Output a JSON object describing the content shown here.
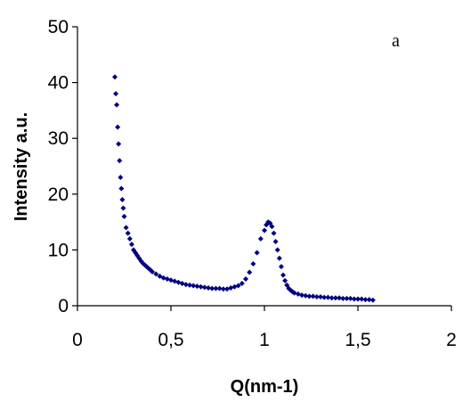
{
  "chart_data": {
    "type": "scatter",
    "xlabel": "Q(nm-1)",
    "ylabel": "Intensity a.u.",
    "annotation": "a",
    "xlim": [
      0,
      2
    ],
    "ylim": [
      0,
      50
    ],
    "x_ticks": [
      {
        "value": 0,
        "label": "0"
      },
      {
        "value": 0.5,
        "label": "0,5"
      },
      {
        "value": 1,
        "label": "1"
      },
      {
        "value": 1.5,
        "label": "1,5"
      },
      {
        "value": 2,
        "label": "2"
      }
    ],
    "y_ticks": [
      {
        "value": 0,
        "label": "0"
      },
      {
        "value": 10,
        "label": "10"
      },
      {
        "value": 20,
        "label": "20"
      },
      {
        "value": 30,
        "label": "30"
      },
      {
        "value": 40,
        "label": "40"
      },
      {
        "value": 50,
        "label": "50"
      }
    ],
    "grid": false,
    "marker_color": "#000080",
    "marker": "diamond",
    "series": [
      {
        "x": [
          0.2,
          0.205,
          0.21,
          0.215,
          0.22,
          0.225,
          0.23,
          0.235,
          0.24,
          0.245,
          0.25,
          0.26,
          0.27,
          0.28,
          0.29,
          0.3,
          0.31,
          0.32,
          0.33,
          0.34,
          0.35,
          0.36,
          0.37,
          0.38,
          0.39,
          0.4,
          0.42,
          0.44,
          0.46,
          0.48,
          0.5,
          0.52,
          0.54,
          0.56,
          0.58,
          0.6,
          0.62,
          0.64,
          0.66,
          0.68,
          0.7,
          0.72,
          0.74,
          0.76,
          0.78,
          0.8,
          0.82,
          0.84,
          0.86,
          0.88,
          0.9,
          0.92,
          0.94,
          0.96,
          0.98,
          1.0,
          1.01,
          1.02,
          1.03,
          1.04,
          1.05,
          1.06,
          1.07,
          1.08,
          1.09,
          1.1,
          1.11,
          1.12,
          1.13,
          1.14,
          1.15,
          1.16,
          1.18,
          1.2,
          1.22,
          1.24,
          1.26,
          1.28,
          1.3,
          1.32,
          1.34,
          1.36,
          1.38,
          1.4,
          1.42,
          1.44,
          1.46,
          1.48,
          1.5,
          1.52,
          1.54,
          1.56,
          1.58
        ],
        "y": [
          41,
          38,
          36,
          32,
          29,
          26,
          23,
          21,
          19,
          17.5,
          16,
          14,
          13,
          12,
          11,
          10,
          9.5,
          9,
          8.5,
          8,
          7.6,
          7.3,
          7,
          6.7,
          6.4,
          6.1,
          5.7,
          5.3,
          5,
          4.8,
          4.6,
          4.4,
          4.2,
          4,
          3.8,
          3.7,
          3.6,
          3.5,
          3.4,
          3.3,
          3.2,
          3.1,
          3.1,
          3.1,
          3,
          3,
          3.2,
          3.4,
          3.6,
          4,
          4.8,
          6,
          7.5,
          9.5,
          12,
          13.5,
          14.5,
          15,
          14.8,
          14.2,
          13,
          11.5,
          10,
          8.5,
          7,
          5.5,
          4.5,
          3.7,
          3.1,
          2.8,
          2.5,
          2.3,
          2.1,
          1.9,
          1.8,
          1.7,
          1.7,
          1.6,
          1.6,
          1.5,
          1.5,
          1.4,
          1.4,
          1.4,
          1.3,
          1.3,
          1.3,
          1.2,
          1.2,
          1.2,
          1.1,
          1.1,
          1
        ]
      }
    ]
  }
}
